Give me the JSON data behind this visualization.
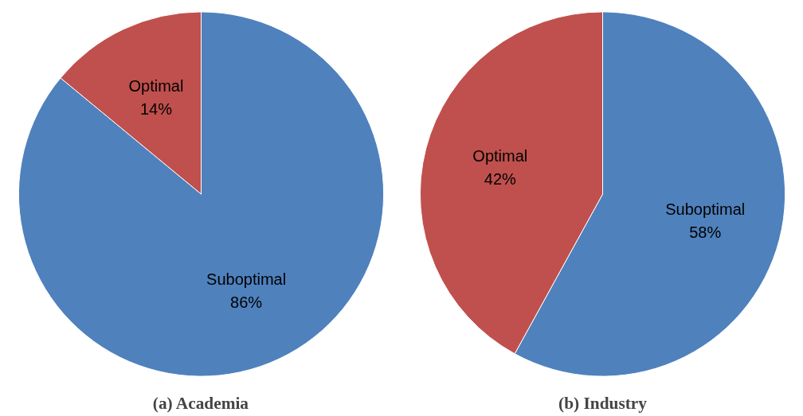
{
  "chart_data": [
    {
      "type": "pie",
      "title": "(a) Academia",
      "categories": [
        "Suboptimal",
        "Optimal"
      ],
      "values": [
        86,
        14
      ],
      "colors": [
        "#4f81bd",
        "#c0504d"
      ],
      "value_labels": [
        "86%",
        "14%"
      ]
    },
    {
      "type": "pie",
      "title": "(b) Industry",
      "categories": [
        "Suboptimal",
        "Optimal"
      ],
      "values": [
        58,
        42
      ],
      "colors": [
        "#4f81bd",
        "#c0504d"
      ],
      "value_labels": [
        "58%",
        "42%"
      ]
    }
  ]
}
